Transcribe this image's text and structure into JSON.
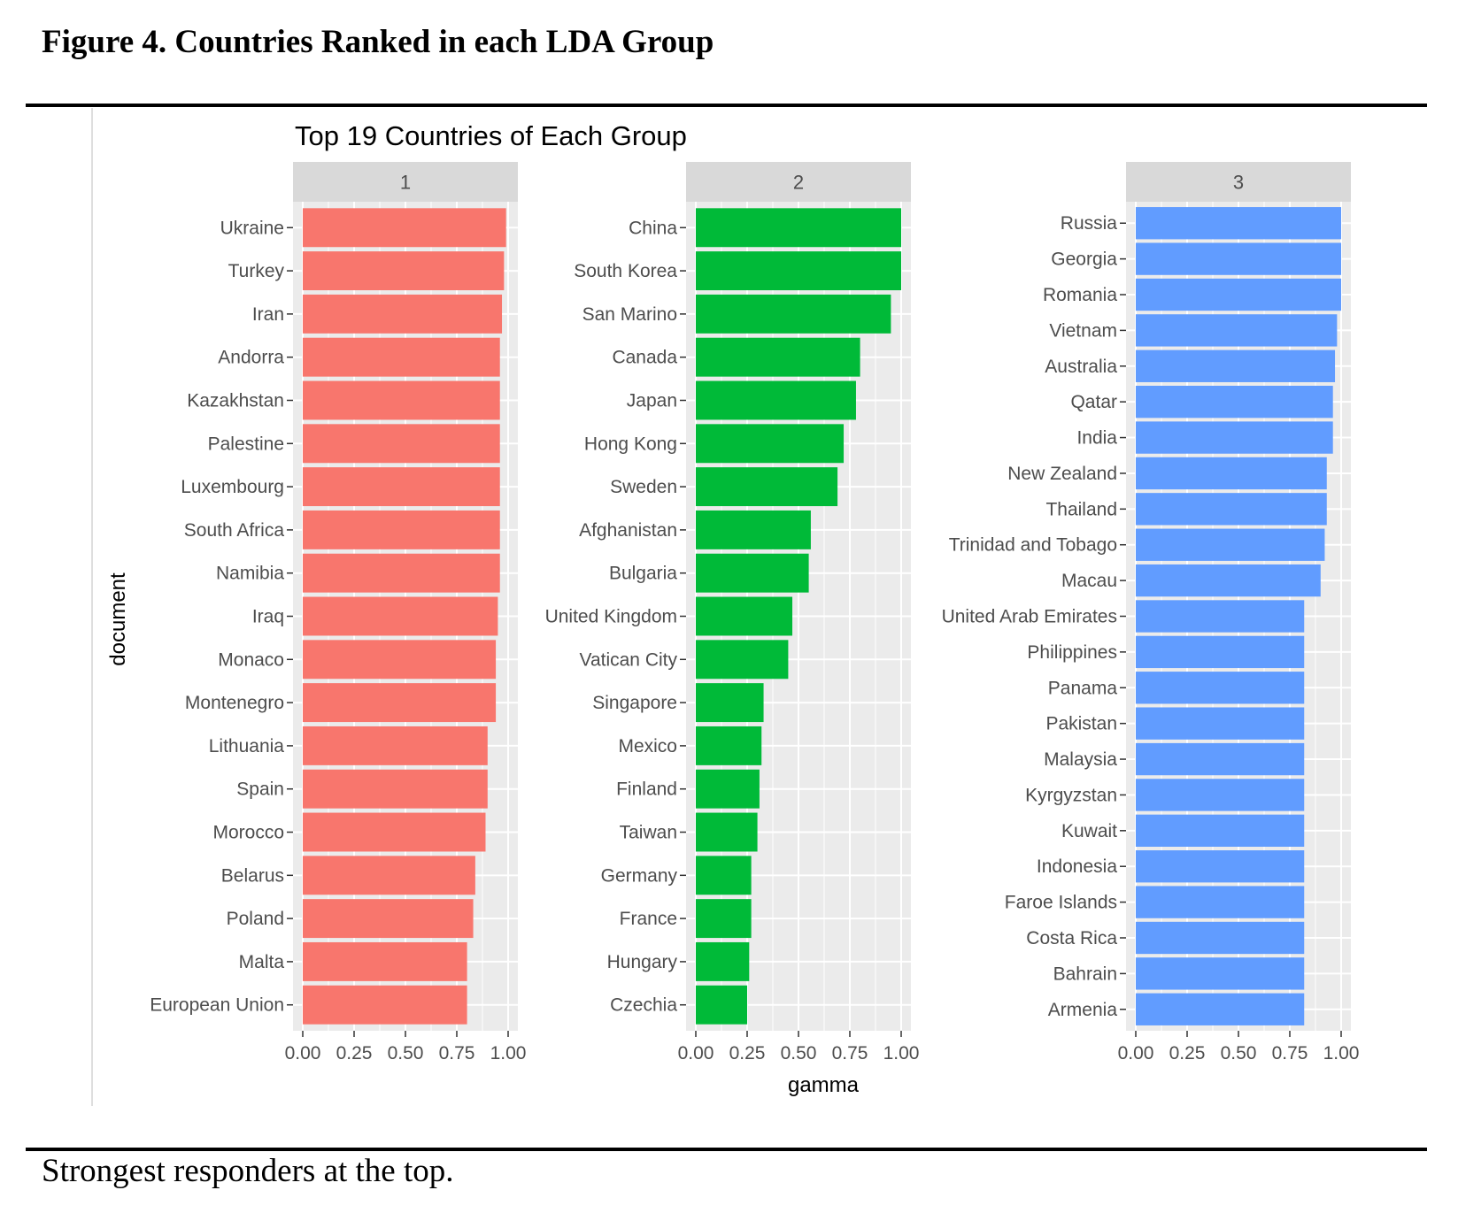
{
  "figure": {
    "caption": "Figure 4. Countries Ranked in each LDA Group",
    "note": "Strongest responders at the top."
  },
  "colors": {
    "group1": "#F8766D",
    "group2": "#00BA38",
    "group3": "#619CFF",
    "panel_bg": "#EBEBEB",
    "strip_bg": "#D9D9D9",
    "grid": "#FFFFFF"
  },
  "chart_data": {
    "type": "bar",
    "orientation": "horizontal",
    "title": "Top 19 Countries of Each Group",
    "xlabel": "gamma",
    "ylabel": "document",
    "xlim": [
      0,
      1
    ],
    "xticks": [
      "0.00",
      "0.25",
      "0.50",
      "0.75",
      "1.00"
    ],
    "grid": true,
    "facets": [
      {
        "label": "1",
        "categories": [
          "Ukraine",
          "Turkey",
          "Iran",
          "Andorra",
          "Kazakhstan",
          "Palestine",
          "Luxembourg",
          "South Africa",
          "Namibia",
          "Iraq",
          "Monaco",
          "Montenegro",
          "Lithuania",
          "Spain",
          "Morocco",
          "Belarus",
          "Poland",
          "Malta",
          "European Union"
        ],
        "values": [
          0.99,
          0.98,
          0.97,
          0.96,
          0.96,
          0.96,
          0.96,
          0.96,
          0.96,
          0.95,
          0.94,
          0.94,
          0.9,
          0.9,
          0.89,
          0.84,
          0.83,
          0.8,
          0.8
        ]
      },
      {
        "label": "2",
        "categories": [
          "China",
          "South Korea",
          "San Marino",
          "Canada",
          "Japan",
          "Hong Kong",
          "Sweden",
          "Afghanistan",
          "Bulgaria",
          "United Kingdom",
          "Vatican City",
          "Singapore",
          "Mexico",
          "Finland",
          "Taiwan",
          "Germany",
          "France",
          "Hungary",
          "Czechia"
        ],
        "values": [
          1.0,
          1.0,
          0.95,
          0.8,
          0.78,
          0.72,
          0.69,
          0.56,
          0.55,
          0.47,
          0.45,
          0.33,
          0.32,
          0.31,
          0.3,
          0.27,
          0.27,
          0.26,
          0.25
        ]
      },
      {
        "label": "3",
        "categories": [
          "Russia",
          "Georgia",
          "Romania",
          "Vietnam",
          "Australia",
          "Qatar",
          "India",
          "New Zealand",
          "Thailand",
          "Trinidad and Tobago",
          "Macau",
          "United Arab Emirates",
          "Philippines",
          "Panama",
          "Pakistan",
          "Malaysia",
          "Kyrgyzstan",
          "Kuwait",
          "Indonesia",
          "Faroe Islands",
          "Costa Rica",
          "Bahrain",
          "Armenia"
        ],
        "values": [
          1.0,
          1.0,
          1.0,
          0.98,
          0.97,
          0.96,
          0.96,
          0.93,
          0.93,
          0.92,
          0.9,
          0.82,
          0.82,
          0.82,
          0.82,
          0.82,
          0.82,
          0.82,
          0.82,
          0.82,
          0.82,
          0.82,
          0.82
        ]
      }
    ]
  }
}
